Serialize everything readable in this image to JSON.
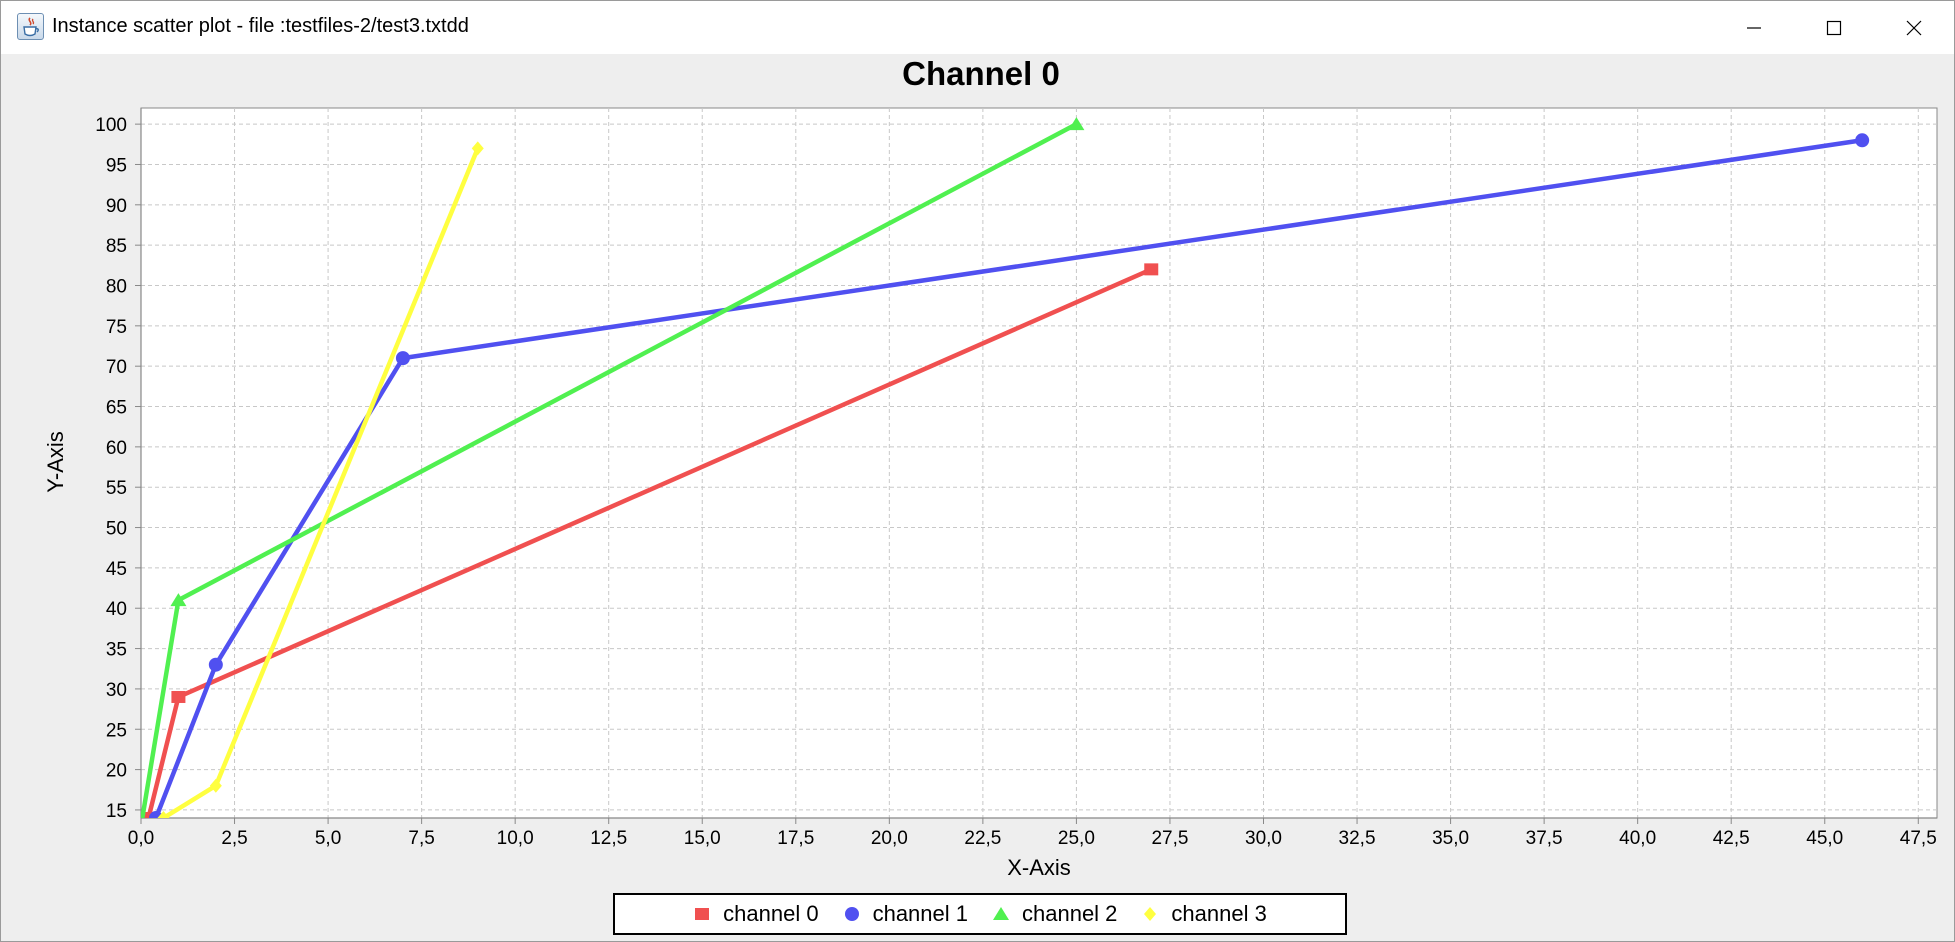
{
  "window": {
    "title": "Instance scatter plot - file :testfiles-2/test3.txtdd"
  },
  "icons": {
    "app": "java-cup-icon",
    "minimize": "minimize-icon",
    "maximize": "maximize-icon",
    "close": "close-icon"
  },
  "chart_data": {
    "type": "line",
    "title": "Channel 0",
    "xlabel": "X-Axis",
    "ylabel": "Y-Axis",
    "xlim": [
      0,
      48
    ],
    "ylim": [
      14,
      102
    ],
    "xticks": [
      0,
      2.5,
      5,
      7.5,
      10,
      12.5,
      15,
      17.5,
      20,
      22.5,
      25,
      27.5,
      30,
      32.5,
      35,
      37.5,
      40,
      42.5,
      45,
      47.5
    ],
    "xtick_labels": [
      "0,0",
      "2,5",
      "5,0",
      "7,5",
      "10,0",
      "12,5",
      "15,0",
      "17,5",
      "20,0",
      "22,5",
      "25,0",
      "27,5",
      "30,0",
      "32,5",
      "35,0",
      "37,5",
      "40,0",
      "42,5",
      "45,0",
      "47,5"
    ],
    "yticks": [
      15,
      20,
      25,
      30,
      35,
      40,
      45,
      50,
      55,
      60,
      65,
      70,
      75,
      80,
      85,
      90,
      95,
      100
    ],
    "ytick_labels": [
      "15",
      "20",
      "25",
      "30",
      "35",
      "40",
      "45",
      "50",
      "55",
      "60",
      "65",
      "70",
      "75",
      "80",
      "85",
      "90",
      "95",
      "100"
    ],
    "grid": true,
    "legend_position": "bottom-center",
    "series": [
      {
        "name": "channel 0",
        "color": "#f05050",
        "marker": "square",
        "points": [
          [
            0.2,
            14
          ],
          [
            1,
            29
          ],
          [
            27,
            82
          ]
        ]
      },
      {
        "name": "channel 1",
        "color": "#5050f0",
        "marker": "circle",
        "points": [
          [
            0.4,
            14
          ],
          [
            2,
            33
          ],
          [
            7,
            71
          ],
          [
            46,
            98
          ]
        ]
      },
      {
        "name": "channel 2",
        "color": "#50f050",
        "marker": "triangle",
        "points": [
          [
            0,
            13
          ],
          [
            1,
            41
          ],
          [
            25,
            100
          ]
        ]
      },
      {
        "name": "channel 3",
        "color": "#ffff40",
        "marker": "diamond",
        "points": [
          [
            0.6,
            14
          ],
          [
            2,
            18
          ],
          [
            9,
            97
          ]
        ]
      }
    ]
  }
}
